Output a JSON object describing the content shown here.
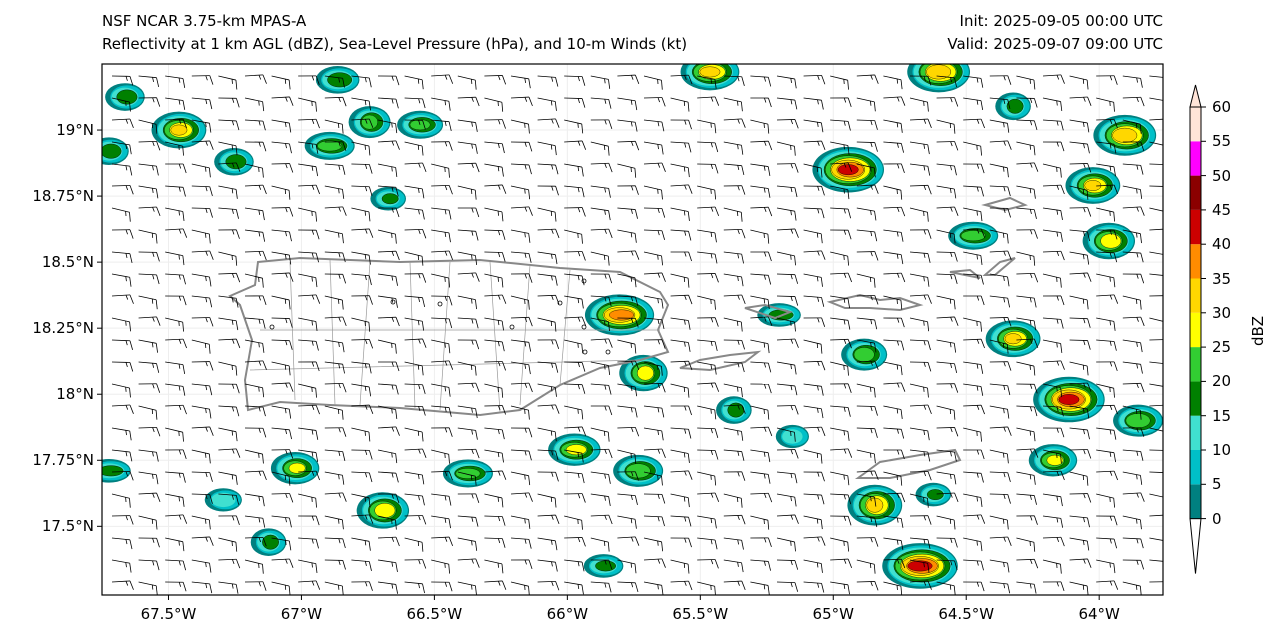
{
  "header": {
    "title_line1": "NSF NCAR 3.75-km MPAS-A",
    "title_line2": "Reflectivity at 1 km AGL (dBZ), Sea-Level Pressure (hPa), and 10-m Winds (kt)",
    "init": "Init: 2025-09-05 00:00 UTC",
    "valid": "Valid: 2025-09-07 09:00 UTC"
  },
  "map": {
    "lon_range": [
      -67.75,
      -63.76
    ],
    "lat_range": [
      17.24,
      19.25
    ],
    "lon_ticks": [
      {
        "v": -67.5,
        "label": "67.5°W"
      },
      {
        "v": -67,
        "label": "67°W"
      },
      {
        "v": -66.5,
        "label": "66.5°W"
      },
      {
        "v": -66,
        "label": "66°W"
      },
      {
        "v": -65.5,
        "label": "65.5°W"
      },
      {
        "v": -65,
        "label": "65°W"
      },
      {
        "v": -64.5,
        "label": "64.5°W"
      },
      {
        "v": -64,
        "label": "64°W"
      }
    ],
    "lat_ticks": [
      {
        "v": 19,
        "label": "19°N"
      },
      {
        "v": 18.75,
        "label": "18.75°N"
      },
      {
        "v": 18.5,
        "label": "18.5°N"
      },
      {
        "v": 18.25,
        "label": "18.25°N"
      },
      {
        "v": 18,
        "label": "18°N"
      },
      {
        "v": 17.75,
        "label": "17.75°N"
      },
      {
        "v": 17.5,
        "label": "17.5°N"
      }
    ],
    "wind": {
      "direction_deg": 95,
      "speed_kt": 15
    }
  },
  "colorbar": {
    "label": "dBZ",
    "ticks": [
      "0",
      "5",
      "10",
      "15",
      "20",
      "25",
      "30",
      "35",
      "40",
      "45",
      "50",
      "55",
      "60"
    ],
    "colors": [
      "#008080",
      "#00c0c8",
      "#40e0d0",
      "#008000",
      "#32cd32",
      "#ffff00",
      "#ffd700",
      "#ff8c00",
      "#cc0000",
      "#8b0000",
      "#ff00ff",
      "#ffe4d8"
    ]
  },
  "cells": [
    {
      "lon": -67.457,
      "lat": 19.0,
      "max": 35
    },
    {
      "lon": -67.66,
      "lat": 19.125,
      "max": 20
    },
    {
      "lon": -66.89,
      "lat": 18.94,
      "max": 25
    },
    {
      "lon": -66.74,
      "lat": 19.03,
      "max": 25
    },
    {
      "lon": -66.55,
      "lat": 19.02,
      "max": 25
    },
    {
      "lon": -66.86,
      "lat": 19.19,
      "max": 20
    },
    {
      "lon": -66.67,
      "lat": 18.74,
      "max": 20
    },
    {
      "lon": -67.25,
      "lat": 18.88,
      "max": 20
    },
    {
      "lon": -65.8,
      "lat": 18.3,
      "max": 40
    },
    {
      "lon": -65.71,
      "lat": 18.08,
      "max": 30
    },
    {
      "lon": -64.94,
      "lat": 18.85,
      "max": 45
    },
    {
      "lon": -63.9,
      "lat": 18.98,
      "max": 35
    },
    {
      "lon": -64.02,
      "lat": 18.79,
      "max": 35
    },
    {
      "lon": -63.96,
      "lat": 18.58,
      "max": 30
    },
    {
      "lon": -64.47,
      "lat": 18.6,
      "max": 25
    },
    {
      "lon": -64.32,
      "lat": 19.09,
      "max": 20
    },
    {
      "lon": -64.11,
      "lat": 17.98,
      "max": 45
    },
    {
      "lon": -63.85,
      "lat": 17.9,
      "max": 25
    },
    {
      "lon": -64.32,
      "lat": 18.21,
      "max": 35
    },
    {
      "lon": -64.88,
      "lat": 18.15,
      "max": 25
    },
    {
      "lon": -64.67,
      "lat": 17.35,
      "max": 45
    },
    {
      "lon": -64.84,
      "lat": 17.58,
      "max": 35
    },
    {
      "lon": -65.97,
      "lat": 17.79,
      "max": 30
    },
    {
      "lon": -65.73,
      "lat": 17.71,
      "max": 25
    },
    {
      "lon": -67.02,
      "lat": 17.72,
      "max": 30
    },
    {
      "lon": -66.69,
      "lat": 17.56,
      "max": 30
    },
    {
      "lon": -66.37,
      "lat": 17.7,
      "max": 25
    },
    {
      "lon": -65.37,
      "lat": 17.94,
      "max": 20
    },
    {
      "lon": -65.46,
      "lat": 19.22,
      "max": 35
    },
    {
      "lon": -64.6,
      "lat": 19.22,
      "max": 35
    },
    {
      "lon": -64.17,
      "lat": 17.75,
      "max": 30
    },
    {
      "lon": -67.72,
      "lat": 18.92,
      "max": 20
    },
    {
      "lon": -67.72,
      "lat": 17.71,
      "max": 20
    },
    {
      "lon": -67.12,
      "lat": 17.44,
      "max": 20
    },
    {
      "lon": -65.86,
      "lat": 17.35,
      "max": 20
    },
    {
      "lon": -67.29,
      "lat": 17.6,
      "max": 15
    },
    {
      "lon": -64.62,
      "lat": 17.62,
      "max": 20
    },
    {
      "lon": -65.15,
      "lat": 17.84,
      "max": 15
    },
    {
      "lon": -65.2,
      "lat": 18.3,
      "max": 20
    }
  ]
}
